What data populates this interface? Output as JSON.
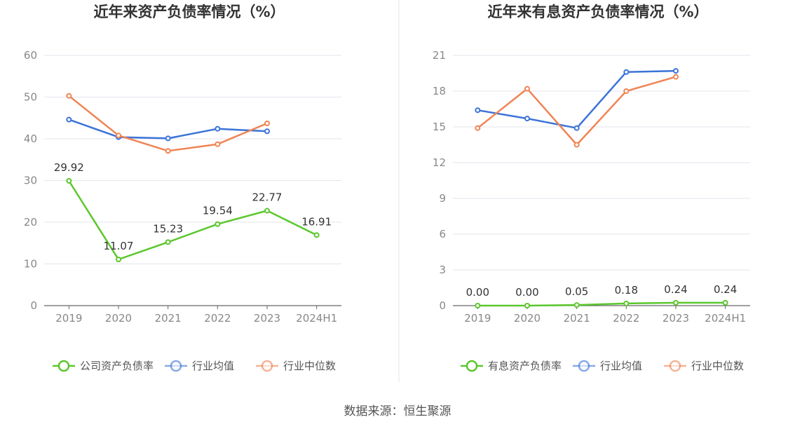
{
  "source": "数据来源：恒生聚源",
  "chart_data": [
    {
      "type": "line",
      "title": "近年来资产负债率情况（%）",
      "categories": [
        "2019",
        "2020",
        "2021",
        "2022",
        "2023",
        "2024H1"
      ],
      "ylim": [
        0,
        60
      ],
      "yticks": [
        0,
        10,
        20,
        30,
        40,
        50,
        60
      ],
      "grid": true,
      "legend_position": "bottom",
      "series": [
        {
          "name": "公司资产负债率",
          "color": "#5bc72d",
          "values": [
            29.92,
            11.07,
            15.23,
            19.54,
            22.77,
            16.91
          ],
          "labels": [
            "29.92",
            "11.07",
            "15.23",
            "19.54",
            "22.77",
            "16.91"
          ]
        },
        {
          "name": "行业均值",
          "color": "#3b73d8",
          "values": [
            44.6,
            40.4,
            40.1,
            42.4,
            41.8,
            null
          ]
        },
        {
          "name": "行业中位数",
          "color": "#f08454",
          "values": [
            50.3,
            40.8,
            37.1,
            38.7,
            43.7,
            null
          ]
        }
      ]
    },
    {
      "type": "line",
      "title": "近年来有息资产负债率情况（%）",
      "categories": [
        "2019",
        "2020",
        "2021",
        "2022",
        "2023",
        "2024H1"
      ],
      "ylim": [
        0,
        21
      ],
      "yticks": [
        0,
        3,
        6,
        9,
        12,
        15,
        18,
        21
      ],
      "grid": true,
      "legend_position": "bottom",
      "series": [
        {
          "name": "有息资产负债率",
          "color": "#5bc72d",
          "values": [
            0.0,
            0.0,
            0.05,
            0.18,
            0.24,
            0.24
          ],
          "labels": [
            "0.00",
            "0.00",
            "0.05",
            "0.18",
            "0.24",
            "0.24"
          ]
        },
        {
          "name": "行业均值",
          "color": "#3b73d8",
          "values": [
            16.4,
            15.7,
            14.9,
            19.6,
            19.7,
            null
          ]
        },
        {
          "name": "行业中位数",
          "color": "#f08454",
          "values": [
            14.9,
            18.2,
            13.5,
            18.0,
            19.2,
            null
          ]
        }
      ]
    }
  ]
}
